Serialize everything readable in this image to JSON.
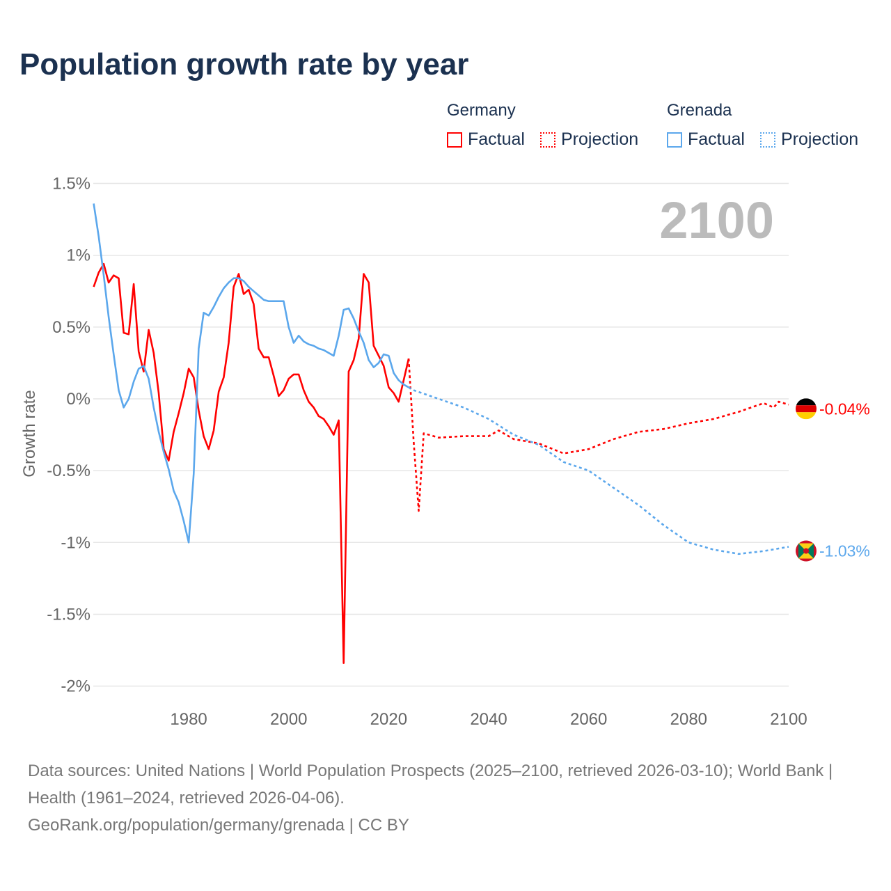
{
  "title": "Population growth rate by year",
  "legend": {
    "groups": [
      {
        "country": "Germany",
        "factual": "Factual",
        "projection": "Projection",
        "color": "#ff0000"
      },
      {
        "country": "Grenada",
        "factual": "Factual",
        "projection": "Projection",
        "color": "#5ba7ec"
      }
    ]
  },
  "year_label": "2100",
  "source": {
    "line1": "Data sources: United Nations | World Population Prospects (2025–2100, retrieved 2026-03-10); World Bank | Health (1961–2024, retrieved 2026-04-06).",
    "line2": "GeoRank.org/population/germany/grenada | CC BY"
  },
  "chart_data": {
    "type": "line",
    "title": "Population growth rate by year",
    "xlabel": "",
    "ylabel": "Growth rate",
    "xlim": [
      1961,
      2100
    ],
    "ylim": [
      -2,
      1.5
    ],
    "yticks": [
      {
        "v": 1.5,
        "label": "1.5%"
      },
      {
        "v": 1,
        "label": "1%"
      },
      {
        "v": 0.5,
        "label": "0.5%"
      },
      {
        "v": 0,
        "label": "0%"
      },
      {
        "v": -0.5,
        "label": "-0.5%"
      },
      {
        "v": -1,
        "label": "-1%"
      },
      {
        "v": -1.5,
        "label": "-1.5%"
      },
      {
        "v": -2,
        "label": "-2%"
      }
    ],
    "xticks": [
      {
        "v": 1980,
        "label": "1980"
      },
      {
        "v": 2000,
        "label": "2000"
      },
      {
        "v": 2020,
        "label": "2020"
      },
      {
        "v": 2040,
        "label": "2040"
      },
      {
        "v": 2060,
        "label": "2060"
      },
      {
        "v": 2080,
        "label": "2080"
      },
      {
        "v": 2100,
        "label": "2100"
      }
    ],
    "grid": true,
    "series": [
      {
        "name": "Germany Factual",
        "color": "#ff0000",
        "dashed": false,
        "x_start": 1961,
        "values": [
          0.78,
          0.88,
          0.94,
          0.81,
          0.86,
          0.84,
          0.46,
          0.45,
          0.8,
          0.33,
          0.19,
          0.48,
          0.32,
          0.04,
          -0.35,
          -0.43,
          -0.23,
          -0.1,
          0.04,
          0.21,
          0.15,
          -0.08,
          -0.26,
          -0.35,
          -0.22,
          0.05,
          0.15,
          0.39,
          0.78,
          0.87,
          0.73,
          0.76,
          0.66,
          0.35,
          0.29,
          0.29,
          0.16,
          0.02,
          0.06,
          0.14,
          0.17,
          0.17,
          0.06,
          -0.02,
          -0.06,
          -0.12,
          -0.14,
          -0.19,
          -0.25,
          -0.15,
          -1.84,
          0.19,
          0.27,
          0.42,
          0.87,
          0.81,
          0.37,
          0.3,
          0.23,
          0.08,
          0.04,
          -0.02,
          0.13,
          0.28
        ]
      },
      {
        "name": "Germany Projection",
        "color": "#ff0000",
        "dashed": true,
        "points": [
          [
            2024,
            0.28
          ],
          [
            2025,
            -0.3
          ],
          [
            2026,
            -0.78
          ],
          [
            2027,
            -0.24
          ],
          [
            2030,
            -0.27
          ],
          [
            2035,
            -0.26
          ],
          [
            2040,
            -0.26
          ],
          [
            2042,
            -0.22
          ],
          [
            2045,
            -0.28
          ],
          [
            2050,
            -0.31
          ],
          [
            2055,
            -0.38
          ],
          [
            2060,
            -0.35
          ],
          [
            2065,
            -0.28
          ],
          [
            2070,
            -0.23
          ],
          [
            2075,
            -0.21
          ],
          [
            2080,
            -0.17
          ],
          [
            2085,
            -0.14
          ],
          [
            2090,
            -0.09
          ],
          [
            2095,
            -0.03
          ],
          [
            2097,
            -0.06
          ],
          [
            2098,
            -0.02
          ],
          [
            2100,
            -0.04
          ]
        ]
      },
      {
        "name": "Grenada Factual",
        "color": "#5ba7ec",
        "dashed": false,
        "x_start": 1961,
        "values": [
          1.36,
          1.13,
          0.86,
          0.57,
          0.31,
          0.06,
          -0.06,
          0.0,
          0.12,
          0.21,
          0.23,
          0.14,
          -0.06,
          -0.23,
          -0.37,
          -0.49,
          -0.64,
          -0.72,
          -0.85,
          -1.0,
          -0.52,
          0.35,
          0.6,
          0.58,
          0.64,
          0.71,
          0.77,
          0.81,
          0.84,
          0.84,
          0.82,
          0.78,
          0.75,
          0.72,
          0.69,
          0.68,
          0.68,
          0.68,
          0.68,
          0.5,
          0.39,
          0.44,
          0.4,
          0.38,
          0.37,
          0.35,
          0.34,
          0.32,
          0.3,
          0.44,
          0.62,
          0.63,
          0.56,
          0.47,
          0.39,
          0.27,
          0.22,
          0.25,
          0.31,
          0.3,
          0.18,
          0.13,
          0.1,
          0.08
        ]
      },
      {
        "name": "Grenada Projection",
        "color": "#5ba7ec",
        "dashed": true,
        "points": [
          [
            2024,
            0.08
          ],
          [
            2025,
            0.06
          ],
          [
            2030,
            0.0
          ],
          [
            2035,
            -0.06
          ],
          [
            2040,
            -0.14
          ],
          [
            2045,
            -0.25
          ],
          [
            2050,
            -0.32
          ],
          [
            2055,
            -0.44
          ],
          [
            2060,
            -0.5
          ],
          [
            2065,
            -0.62
          ],
          [
            2070,
            -0.74
          ],
          [
            2075,
            -0.88
          ],
          [
            2080,
            -1.0
          ],
          [
            2085,
            -1.05
          ],
          [
            2090,
            -1.08
          ],
          [
            2095,
            -1.06
          ],
          [
            2100,
            -1.03
          ]
        ]
      }
    ],
    "end_labels": [
      {
        "country": "Germany",
        "label": "-0.04%",
        "value": -0.04,
        "color": "#ff0000"
      },
      {
        "country": "Grenada",
        "label": "-1.03%",
        "value": -1.03,
        "color": "#5ba7ec"
      }
    ]
  }
}
